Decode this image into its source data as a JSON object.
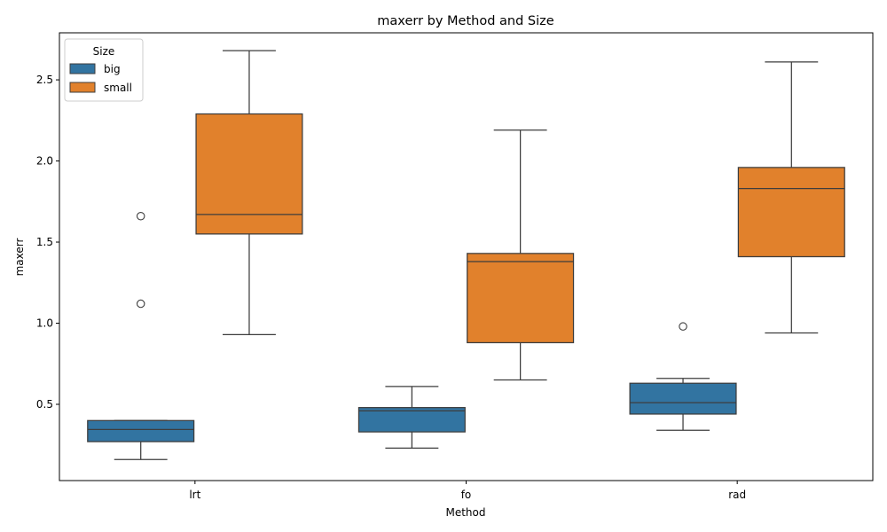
{
  "chart_data": {
    "type": "boxplot",
    "title": "maxerr by Method and Size",
    "xlabel": "Method",
    "ylabel": "maxerr",
    "categories": [
      "lrt",
      "fo",
      "rad"
    ],
    "ylim": [
      0.03,
      2.79
    ],
    "yticks": [
      0.5,
      1.0,
      1.5,
      2.0,
      2.5
    ],
    "ytick_labels": [
      "0.5",
      "1.0",
      "1.5",
      "2.0",
      "2.5"
    ],
    "grid": false,
    "legend": {
      "title": "Size",
      "placement": "top-left"
    },
    "line_color": "#3d3d3d",
    "series": [
      {
        "name": "big",
        "color": "#3274a1",
        "boxes": [
          {
            "category": "lrt",
            "whisker_low": 0.16,
            "q1": 0.27,
            "median": 0.345,
            "q3": 0.4,
            "whisker_high": 0.4,
            "outliers": [
              1.12,
              1.66
            ]
          },
          {
            "category": "fo",
            "whisker_low": 0.23,
            "q1": 0.33,
            "median": 0.46,
            "q3": 0.48,
            "whisker_high": 0.61,
            "outliers": []
          },
          {
            "category": "rad",
            "whisker_low": 0.34,
            "q1": 0.44,
            "median": 0.51,
            "q3": 0.63,
            "whisker_high": 0.66,
            "outliers": [
              0.98
            ]
          }
        ]
      },
      {
        "name": "small",
        "color": "#e1812c",
        "boxes": [
          {
            "category": "lrt",
            "whisker_low": 0.93,
            "q1": 1.55,
            "median": 1.67,
            "q3": 2.29,
            "whisker_high": 2.68,
            "outliers": []
          },
          {
            "category": "fo",
            "whisker_low": 0.65,
            "q1": 0.88,
            "median": 1.38,
            "q3": 1.43,
            "whisker_high": 2.19,
            "outliers": []
          },
          {
            "category": "rad",
            "whisker_low": 0.94,
            "q1": 1.41,
            "median": 1.83,
            "q3": 1.96,
            "whisker_high": 2.61,
            "outliers": []
          }
        ]
      }
    ]
  }
}
